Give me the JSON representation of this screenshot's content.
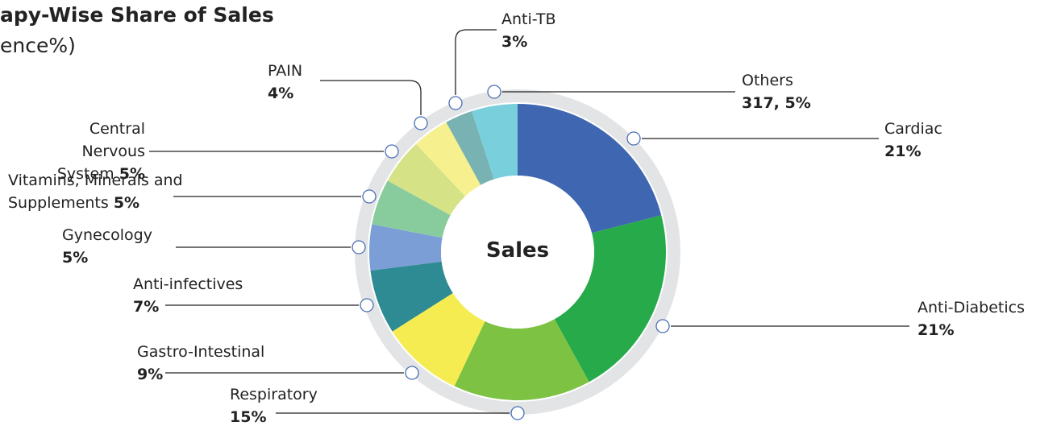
{
  "chart_data": {
    "type": "pie",
    "title": "apy-Wise Share of Sales",
    "subtitle": "ence%)",
    "center_label": "Sales",
    "categories": [
      "Cardiac",
      "Anti-Diabetics",
      "Respiratory",
      "Gastro-Intestinal",
      "Anti-infectives",
      "Gynecology",
      "Vitamins, Minerals and Supplements",
      "Central Nervous System",
      "PAIN",
      "Anti-TB",
      "Others"
    ],
    "values": [
      21,
      21,
      15,
      9,
      7,
      5,
      5,
      5,
      4,
      3,
      5
    ],
    "value_labels": [
      "21%",
      "21%",
      "15%",
      "9%",
      "7%",
      "5%",
      "5%",
      "5%",
      "4%",
      "3%",
      "317, 5%"
    ],
    "colors": [
      "#3f67b1",
      "#27aa4a",
      "#7dc242",
      "#f5ec52",
      "#2e8a93",
      "#7b9ed6",
      "#88cc9e",
      "#d5e286",
      "#f6f08f",
      "#78b2b2",
      "#79cfdc"
    ]
  }
}
